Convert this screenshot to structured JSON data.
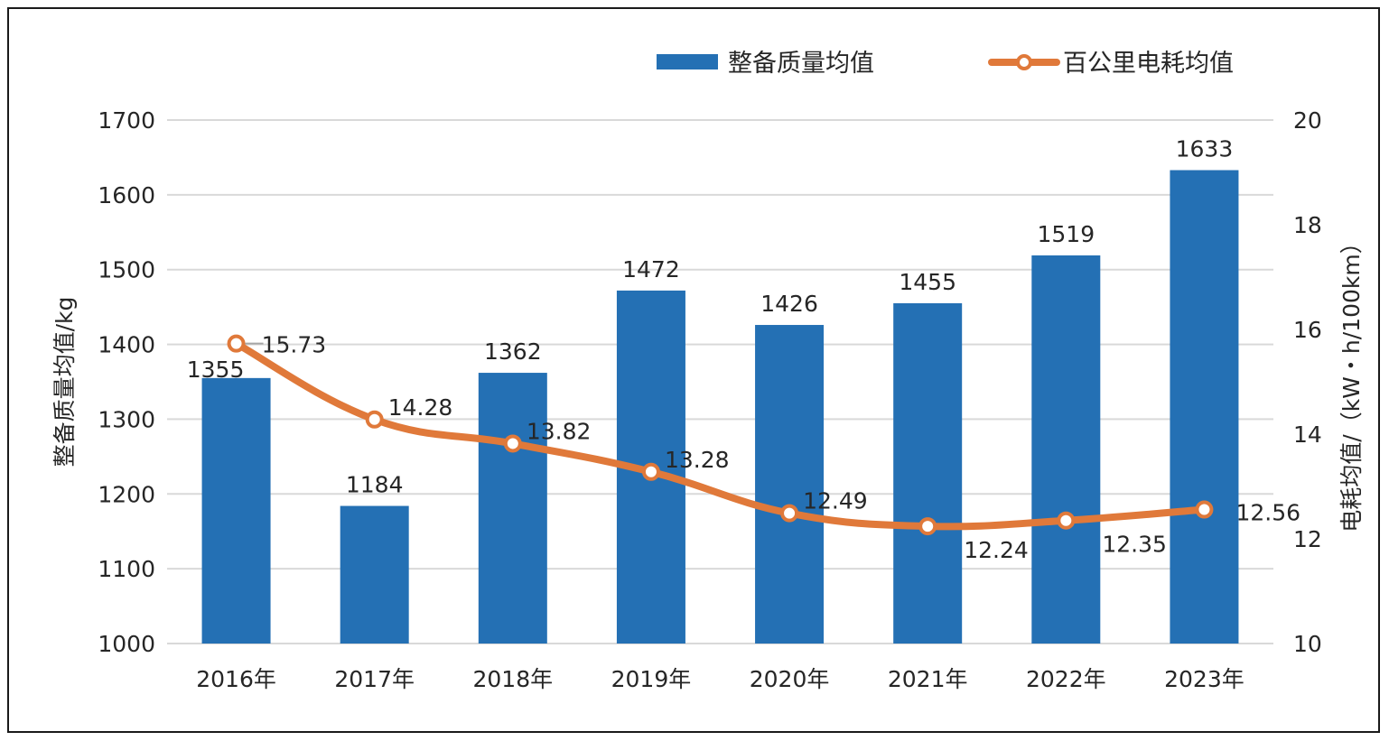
{
  "chart_data": {
    "type": "bar",
    "categories": [
      "2016年",
      "2017年",
      "2018年",
      "2019年",
      "2020年",
      "2021年",
      "2022年",
      "2023年"
    ],
    "series": [
      {
        "name": "整备质量均值",
        "type": "bar",
        "axis": "left",
        "color": "#2470b4",
        "values": [
          1355,
          1184,
          1362,
          1472,
          1426,
          1455,
          1519,
          1633
        ],
        "labels": [
          "1355",
          "1184",
          "1362",
          "1472",
          "1426",
          "1455",
          "1519",
          "1633"
        ]
      },
      {
        "name": "百公里电耗均值",
        "type": "line",
        "axis": "right",
        "color": "#e0793a",
        "values": [
          15.73,
          14.28,
          13.82,
          13.28,
          12.49,
          12.24,
          12.35,
          12.56
        ],
        "labels": [
          "15.73",
          "14.28",
          "13.82",
          "13.28",
          "12.49",
          "12.24",
          "12.35",
          "12.56"
        ]
      }
    ],
    "ylabel": "整备质量均值/kg",
    "y2label": "电耗均值/（kW・h/100km）",
    "ylim": [
      1000,
      1700
    ],
    "y2lim": [
      10,
      20
    ],
    "yticks": [
      "1000",
      "1100",
      "1200",
      "1300",
      "1400",
      "1500",
      "1600",
      "1700"
    ],
    "y2ticks": [
      "10",
      "12",
      "14",
      "16",
      "18",
      "20"
    ],
    "grid": true,
    "legend_position": "top-right"
  }
}
